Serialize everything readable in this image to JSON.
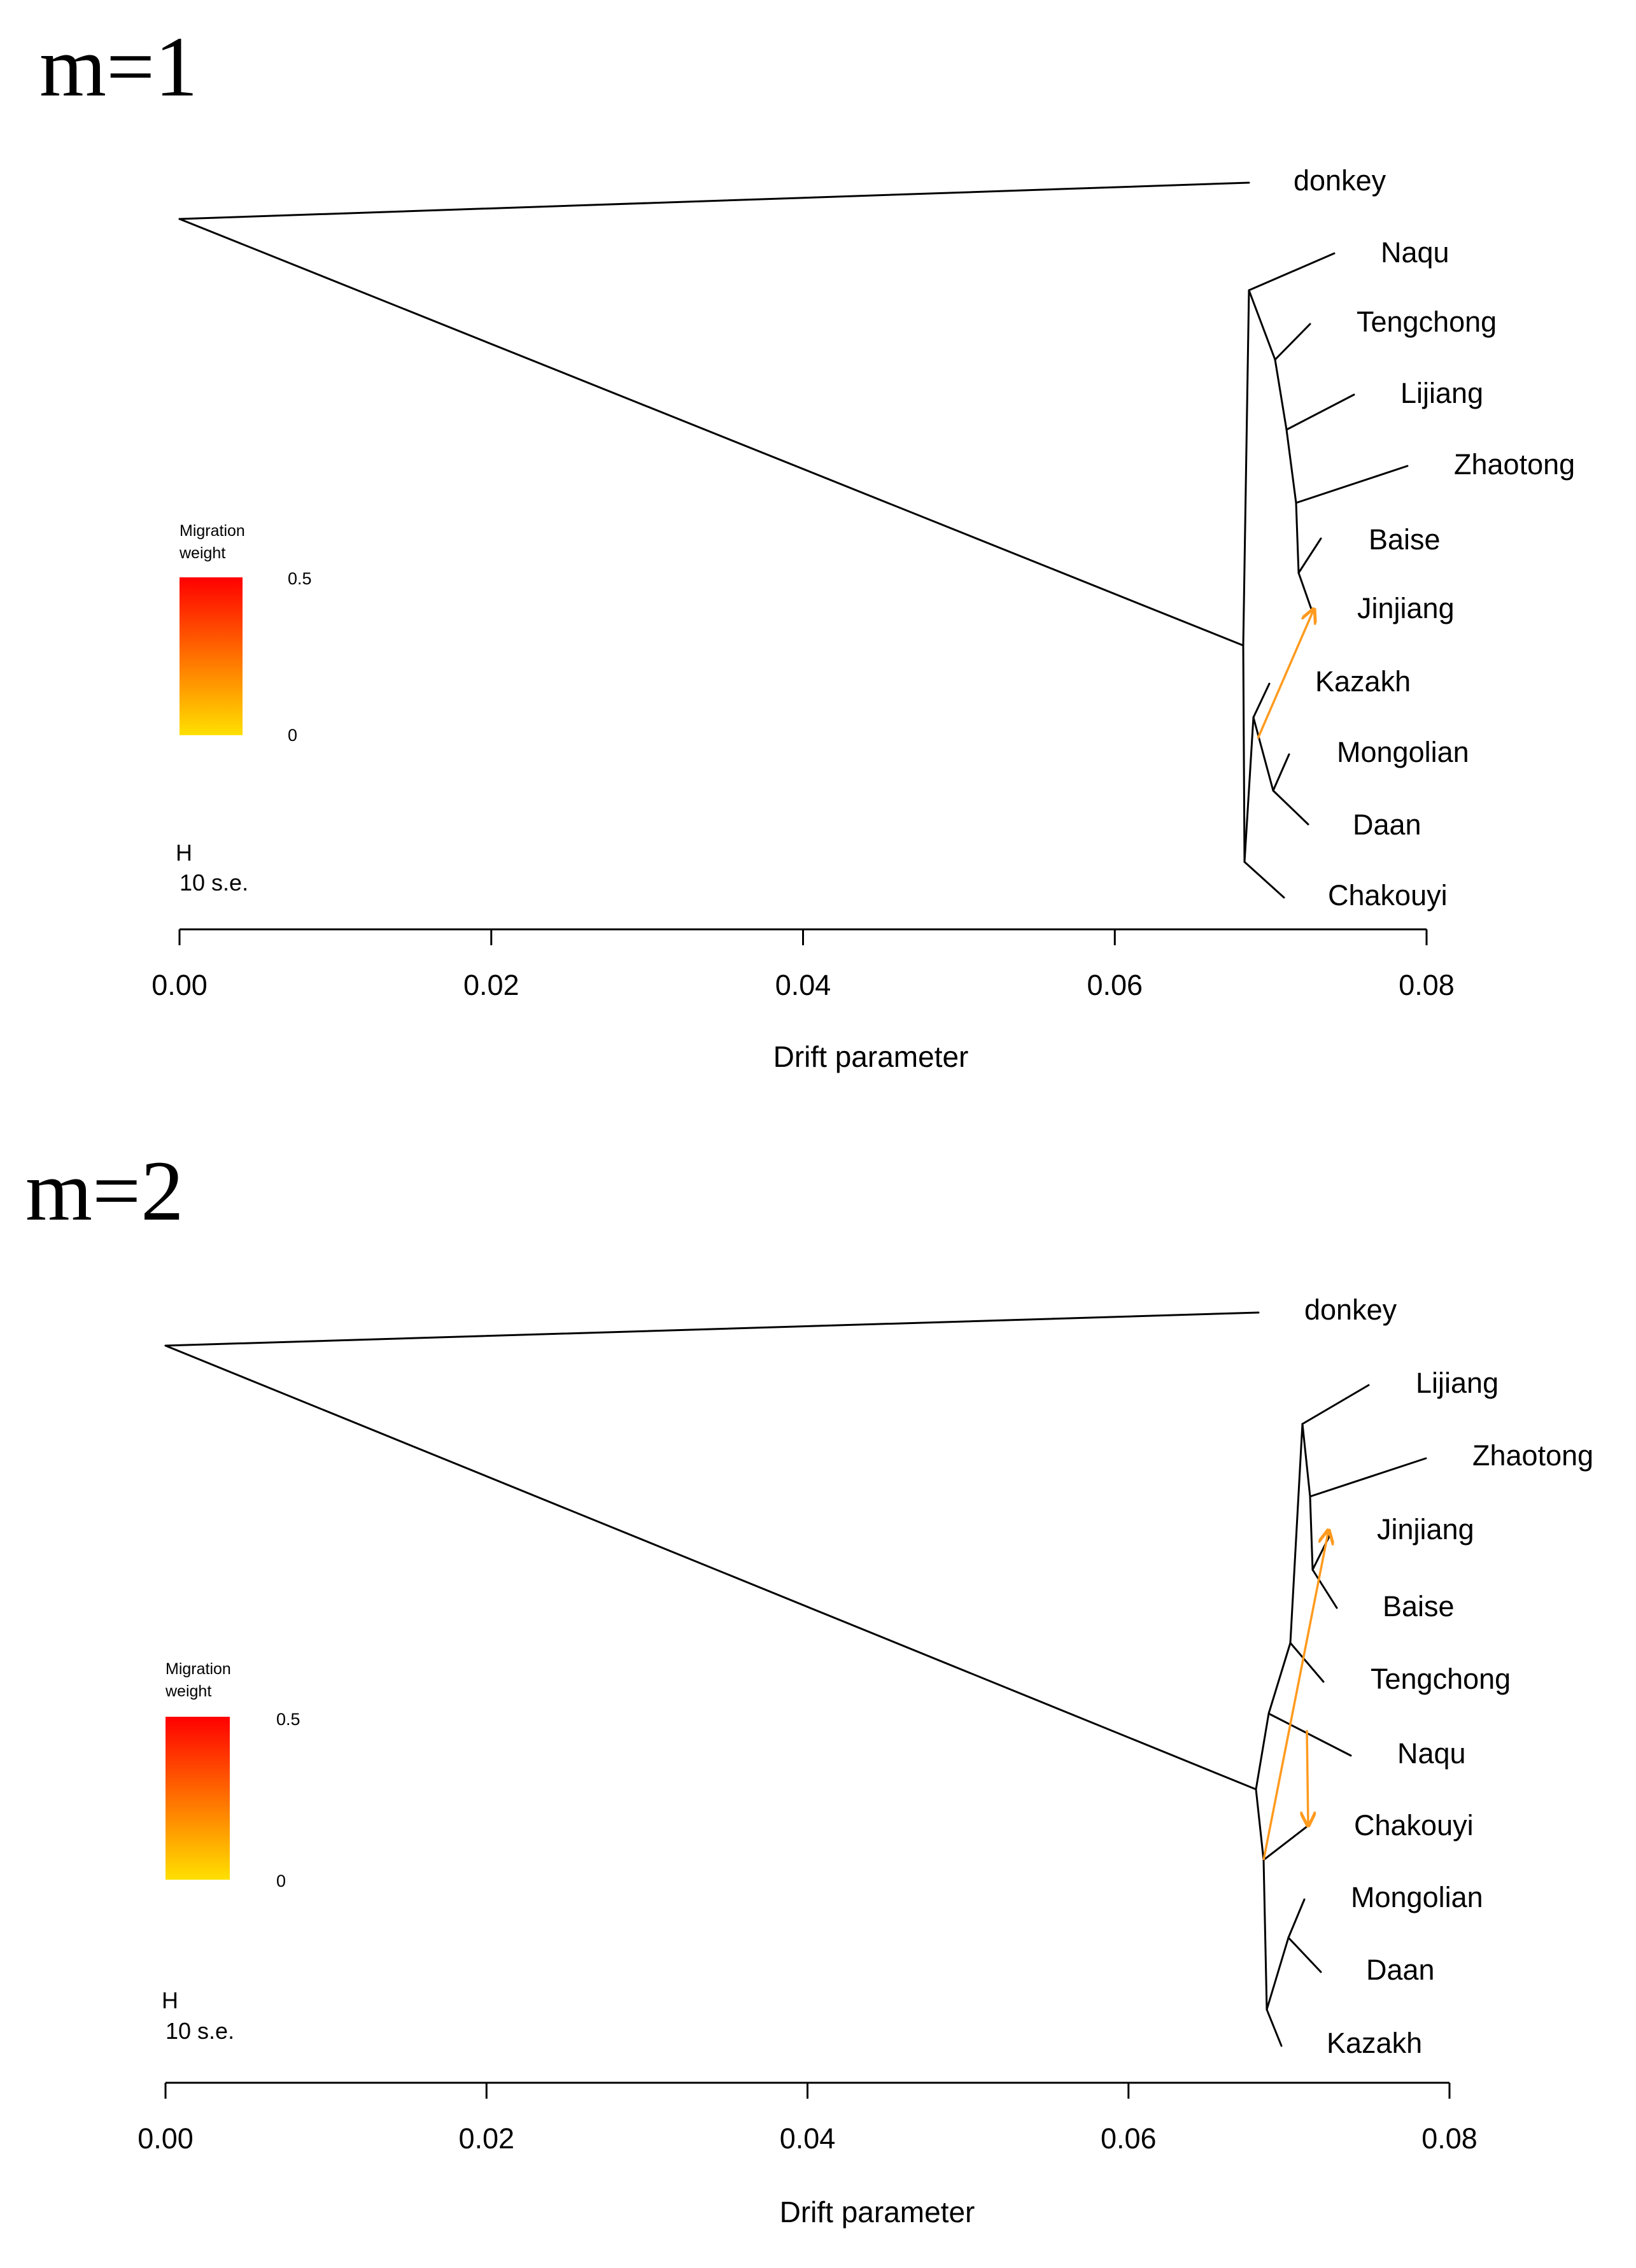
{
  "chart_data": [
    {
      "type": "tree",
      "title": "m=1",
      "xlabel": "Drift parameter",
      "xlim": [
        0,
        0.08
      ],
      "xticks": [
        "0.00",
        "0.02",
        "0.04",
        "0.06",
        "0.08"
      ],
      "legend": {
        "title_line1": "Migration",
        "title_line2": "weight",
        "max_label": "0.5",
        "min_label": "0",
        "max_color": "#ff0000",
        "min_color": "#ffe000"
      },
      "scale_bar": {
        "symbol": "H",
        "label": "10 s.e."
      },
      "leaves": [
        "donkey",
        "Naqu",
        "Tengchong",
        "Lijiang",
        "Zhaotong",
        "Baise",
        "Jinjiang",
        "Kazakh",
        "Mongolian",
        "Daan",
        "Chakouyi"
      ],
      "migration_edges": [
        {
          "from": "Kazakh/Mongolian/Daan ancestor",
          "to": "Baise/Jinjiang ancestor",
          "weight": 0.2,
          "color": "#ff9a1e"
        }
      ]
    },
    {
      "type": "tree",
      "title": "m=2",
      "xlabel": "Drift parameter",
      "xlim": [
        0,
        0.08
      ],
      "xticks": [
        "0.00",
        "0.02",
        "0.04",
        "0.06",
        "0.08"
      ],
      "legend": {
        "title_line1": "Migration",
        "title_line2": "weight",
        "max_label": "0.5",
        "min_label": "0",
        "max_color": "#ff0000",
        "min_color": "#ffe000"
      },
      "scale_bar": {
        "symbol": "H",
        "label": "10 s.e."
      },
      "leaves": [
        "donkey",
        "Lijiang",
        "Zhaotong",
        "Jinjiang",
        "Baise",
        "Tengchong",
        "Naqu",
        "Chakouyi",
        "Mongolian",
        "Daan",
        "Kazakh"
      ],
      "migration_edges": [
        {
          "from": "ancestral node",
          "to": "Jinjiang/Baise ancestor",
          "weight": 0.2,
          "color": "#ff9a1e"
        },
        {
          "from": "Naqu lineage",
          "to": "Chakouyi",
          "weight": 0.2,
          "color": "#ff9a1e"
        }
      ]
    }
  ]
}
